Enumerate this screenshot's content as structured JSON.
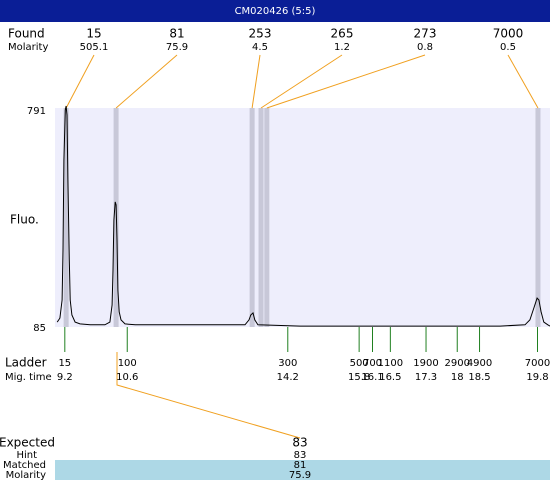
{
  "header": {
    "title": "CM020426 (5:5)"
  },
  "chart_data": {
    "type": "line",
    "y_label": "Fluo.",
    "color": "#000000",
    "xlim": [
      8.98,
      20.08
    ],
    "ylim": [
      85,
      791
    ],
    "yticks": [
      85,
      791
    ],
    "x": [
      9.03,
      9.09,
      9.14,
      9.16,
      9.18,
      9.21,
      9.23,
      9.25,
      9.27,
      9.3,
      9.32,
      9.36,
      9.43,
      9.54,
      9.77,
      10.1,
      10.21,
      10.26,
      10.28,
      10.3,
      10.33,
      10.35,
      10.37,
      10.39,
      10.42,
      10.46,
      10.55,
      10.78,
      12.23,
      13.24,
      13.33,
      13.37,
      13.42,
      13.46,
      13.53,
      14.48,
      16.72,
      18.96,
      19.52,
      19.63,
      19.72,
      19.79,
      19.83,
      19.88,
      19.94,
      20.03,
      20.08
    ],
    "values": [
      101,
      114,
      173,
      336,
      628,
      791,
      804,
      775,
      563,
      303,
      173,
      124,
      101,
      95,
      92,
      92,
      101,
      157,
      270,
      433,
      492,
      482,
      368,
      205,
      134,
      108,
      95,
      92,
      92,
      92,
      108,
      124,
      131,
      108,
      92,
      88,
      88,
      88,
      92,
      108,
      147,
      179,
      173,
      134,
      101,
      92,
      88
    ],
    "found": {
      "label": "Found",
      "sub_label": "Molarity",
      "sizes": [
        15,
        81,
        253,
        265,
        273,
        7000
      ],
      "molarity": [
        505.1,
        75.9,
        4.5,
        1.2,
        0.8,
        0.5
      ],
      "mig_times": [
        9.23,
        10.35,
        13.4,
        13.6,
        13.73,
        19.81
      ]
    },
    "ladder": {
      "label": "Ladder",
      "sub_label": "Mig. time",
      "sizes": [
        15,
        100,
        300,
        500,
        700,
        1100,
        1900,
        2900,
        4900,
        7000
      ],
      "mig_times": [
        9.2,
        10.6,
        14.2,
        15.8,
        16.1,
        16.5,
        17.3,
        18,
        18.5,
        19.8
      ]
    }
  },
  "expected": {
    "label": "Expected",
    "value": 83,
    "hint_label": "Hint",
    "hint": 83,
    "matched_label": "Matched",
    "matched": 81,
    "molarity_label": "Molarity",
    "molarity": 75.9
  }
}
